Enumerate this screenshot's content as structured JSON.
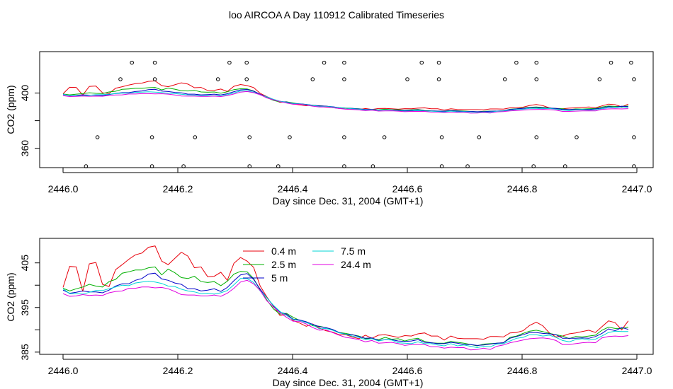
{
  "figure": {
    "title": "loo AIRCOA A  Day 110912  Calibrated Timeseries"
  },
  "colors": {
    "0.4 m": "#e8000b",
    "2.5 m": "#00b000",
    "5 m": "#0000c8",
    "7.5 m": "#00d6d6",
    "24.4 m": "#e000e0",
    "axes": "#000000"
  },
  "chart_data": [
    {
      "type": "line",
      "title": "",
      "xlabel": "Day since Dec. 31, 2004 (GMT+1)",
      "ylabel": "CO2 (ppm)",
      "xlim": [
        2446.0,
        2447.0
      ],
      "ylim": [
        346,
        430
      ],
      "xticks": [
        2446.0,
        2446.2,
        2446.4,
        2446.6,
        2446.8,
        2447.0
      ],
      "xtick_labels": [
        "2446.0",
        "2446.2",
        "2446.4",
        "2446.6",
        "2446.8",
        "2447.0"
      ],
      "yticks": [
        360,
        380,
        400
      ],
      "ytick_labels": [
        "360",
        "",
        "400"
      ],
      "grid": false,
      "series": [
        {
          "name": "0.4 m",
          "values": [
            399.5,
            404.2,
            404.1,
            398.6,
            404.8,
            405.1,
            400.2,
            399.7,
            403.5,
            404.6,
            405.8,
            406.8,
            407.2,
            408.5,
            408.8,
            405.4,
            404.6,
            406.0,
            407.4,
            406.5,
            403.9,
            404.1,
            401.9,
            402.0,
            402.9,
            401.1,
            404.9,
            406.2,
            405.4,
            404.0,
            399.8,
            397.4,
            395.3,
            393.2,
            393.5,
            392.1,
            391.5,
            390.8,
            391.3,
            390.4,
            389.8,
            389.5,
            388.9,
            388.9,
            388.4,
            388.0,
            388.8,
            388.1,
            388.8,
            388.9,
            388.6,
            388.3,
            388.7,
            388.6,
            389.1,
            389.3,
            388.6,
            388.6,
            387.7,
            388.6,
            388.1,
            388.0,
            388.0,
            388.0,
            387.9,
            388.5,
            388.5,
            388.4,
            389.3,
            389.4,
            389.8,
            391.0,
            391.7,
            390.9,
            389.3,
            388.4,
            388.6,
            389.1,
            389.3,
            389.6,
            389.9,
            389.4,
            390.7,
            392.0,
            391.6,
            390.0,
            392.0
          ]
        },
        {
          "name": "2.5 m",
          "values": [
            399.3,
            398.7,
            399.2,
            399.6,
            400.2,
            399.8,
            399.6,
            400.8,
            401.3,
            402.7,
            403.0,
            403.4,
            403.4,
            403.9,
            404.1,
            402.3,
            403.6,
            402.8,
            401.7,
            401.5,
            402.0,
            400.8,
            400.6,
            400.8,
            399.9,
            400.9,
            402.5,
            403.1,
            403.0,
            401.5,
            398.9,
            396.7,
            394.7,
            393.5,
            393.7,
            392.8,
            392.1,
            391.8,
            390.9,
            390.8,
            390.5,
            390.0,
            389.4,
            389.2,
            388.9,
            388.6,
            388.0,
            388.0,
            387.8,
            388.3,
            387.9,
            388.0,
            387.5,
            387.9,
            388.1,
            387.4,
            387.1,
            387.0,
            387.0,
            387.4,
            387.2,
            387.0,
            386.7,
            386.4,
            386.8,
            386.9,
            387.0,
            387.1,
            388.3,
            388.6,
            389.2,
            389.7,
            389.9,
            389.6,
            389.2,
            388.9,
            388.6,
            388.0,
            388.5,
            388.4,
            388.6,
            388.8,
            389.9,
            390.6,
            390.3,
            390.3,
            390.6
          ]
        },
        {
          "name": "5 m",
          "values": [
            398.9,
            398.2,
            398.4,
            398.7,
            398.5,
            398.5,
            398.3,
            398.9,
            399.8,
            400.3,
            400.3,
            401.1,
            401.5,
            402.5,
            402.7,
            401.4,
            401.1,
            400.5,
            400.2,
            399.2,
            399.2,
            398.7,
            398.9,
            399.2,
            398.6,
            399.5,
            401.0,
            402.3,
            402.6,
            401.3,
            399.1,
            397.2,
            395.4,
            394.0,
            393.5,
            392.4,
            392.2,
            391.8,
            391.2,
            390.7,
            390.5,
            390.1,
            389.4,
            389.0,
            388.9,
            388.5,
            388.1,
            388.2,
            387.6,
            387.8,
            387.8,
            387.5,
            387.4,
            387.5,
            387.8,
            387.2,
            387.1,
            386.9,
            386.9,
            387.2,
            387.0,
            386.7,
            386.7,
            386.5,
            386.6,
            386.8,
            387.0,
            387.1,
            388.1,
            388.5,
            388.9,
            389.4,
            389.4,
            389.2,
            389.1,
            388.9,
            388.1,
            388.1,
            388.1,
            388.2,
            388.1,
            388.5,
            389.2,
            390.2,
            389.8,
            390.5,
            390.1
          ]
        },
        {
          "name": "7.5 m",
          "values": [
            399.2,
            398.1,
            398.1,
            398.0,
            398.4,
            398.8,
            398.8,
            399.2,
            399.6,
            400.0,
            399.9,
            400.5,
            400.7,
            400.9,
            400.7,
            400.4,
            399.8,
            399.7,
            399.1,
            398.7,
            398.5,
            398.1,
            398.2,
            398.0,
            398.3,
            398.8,
            400.1,
            401.5,
            401.5,
            400.6,
            398.7,
            397.2,
            395.5,
            394.1,
            393.2,
            392.3,
            392.1,
            391.6,
            391.1,
            390.2,
            390.3,
            389.9,
            389.3,
            389.0,
            388.6,
            388.3,
            387.8,
            388.0,
            387.5,
            387.8,
            387.7,
            387.1,
            387.0,
            386.9,
            387.3,
            386.9,
            386.9,
            386.6,
            386.4,
            386.9,
            386.4,
            386.6,
            386.3,
            386.0,
            386.3,
            386.2,
            386.8,
            386.9,
            387.5,
            388.1,
            388.3,
            388.9,
            388.9,
            388.6,
            388.8,
            388.3,
            387.6,
            387.3,
            387.8,
            388.0,
            387.7,
            387.9,
            388.6,
            389.4,
            389.7,
            389.6,
            389.6
          ]
        },
        {
          "name": "24.4 m",
          "values": [
            398.1,
            397.5,
            397.6,
            397.9,
            397.7,
            397.8,
            397.7,
            398.3,
            398.6,
            398.7,
            399.3,
            399.3,
            399.6,
            399.6,
            399.4,
            399.5,
            399.2,
            398.6,
            397.9,
            397.8,
            397.8,
            397.6,
            397.6,
            397.8,
            397.5,
            398.2,
            399.3,
            400.7,
            401.1,
            400.3,
            398.8,
            396.5,
            395.1,
            393.8,
            392.8,
            391.9,
            391.9,
            391.3,
            390.5,
            389.9,
            390.0,
            389.4,
            388.8,
            388.3,
            388.1,
            387.8,
            387.3,
            387.6,
            387.0,
            387.1,
            387.2,
            386.9,
            386.5,
            386.7,
            386.7,
            386.7,
            386.2,
            386.2,
            385.9,
            386.1,
            386.0,
            386.0,
            385.5,
            385.6,
            385.9,
            385.6,
            386.3,
            386.6,
            387.1,
            387.4,
            387.7,
            388.0,
            388.1,
            388.2,
            388.0,
            387.6,
            386.7,
            386.7,
            386.9,
            387.1,
            387.2,
            387.1,
            388.2,
            388.5,
            388.6,
            388.5,
            388.7
          ]
        }
      ],
      "flags": [
        {
          "y": 422,
          "x": [
            2446.12,
            2446.16,
            2446.29,
            2446.32,
            2446.455,
            2446.49,
            2446.625,
            2446.655,
            2446.79,
            2446.825,
            2446.955,
            2446.99
          ]
        },
        {
          "y": 410,
          "x": [
            2446.1,
            2446.16,
            2446.27,
            2446.32,
            2446.435,
            2446.49,
            2446.6,
            2446.655,
            2446.77,
            2446.825,
            2446.935,
            2446.995
          ]
        },
        {
          "y": 368,
          "x": [
            2446.06,
            2446.155,
            2446.23,
            2446.325,
            2446.395,
            2446.49,
            2446.56,
            2446.66,
            2446.725,
            2446.825,
            2446.895,
            2446.995
          ]
        },
        {
          "y": 347,
          "x": [
            2446.04,
            2446.155,
            2446.21,
            2446.325,
            2446.375,
            2446.49,
            2446.54,
            2446.66,
            2446.705,
            2446.82,
            2446.875,
            2446.995
          ]
        }
      ]
    },
    {
      "type": "line",
      "title": "",
      "xlabel": "Day since Dec. 31, 2004 (GMT+1)",
      "ylabel": "CO2 (ppm)",
      "xlim": [
        2446.0,
        2447.0
      ],
      "ylim": [
        384.5,
        410.5
      ],
      "xticks": [
        2446.0,
        2446.2,
        2446.4,
        2446.6,
        2446.8,
        2447.0
      ],
      "xtick_labels": [
        "2446.0",
        "2446.2",
        "2446.4",
        "2446.6",
        "2446.8",
        "2447.0"
      ],
      "yticks": [
        385,
        390,
        395,
        400,
        405
      ],
      "ytick_labels": [
        "385",
        "",
        "395",
        "",
        "405"
      ],
      "grid": false,
      "legend": {
        "placement": "top-center",
        "columns": 2
      },
      "series_ref": "chart_data.0.series"
    }
  ]
}
